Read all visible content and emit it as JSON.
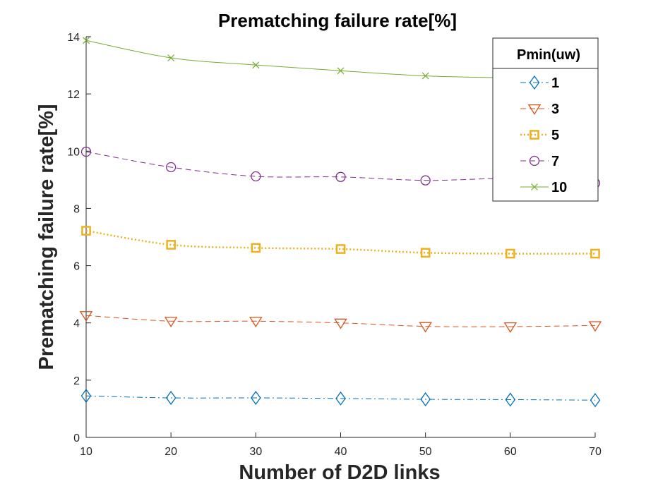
{
  "chart_data": {
    "type": "line",
    "title": "Prematching failure rate[%]",
    "xlabel": "Number of D2D links",
    "ylabel": "Prematching failure rate[%]",
    "xlim": [
      10,
      70
    ],
    "ylim": [
      0,
      14
    ],
    "xticks": [
      "10",
      "20",
      "30",
      "40",
      "50",
      "60",
      "70"
    ],
    "yticks": [
      "0",
      "2",
      "4",
      "6",
      "8",
      "10",
      "12",
      "14"
    ],
    "x": [
      10,
      20,
      30,
      40,
      50,
      60,
      70
    ],
    "grid": false,
    "legend": {
      "title": "Pmin(uw)",
      "placement": "top-right"
    },
    "series": [
      {
        "name": "1",
        "color": "#0072BD",
        "marker": "diamond",
        "line": "dashdot",
        "values": [
          1.45,
          1.38,
          1.38,
          1.36,
          1.33,
          1.32,
          1.3
        ]
      },
      {
        "name": "3",
        "color": "#D95319",
        "marker": "triangle-down",
        "line": "dashed",
        "values": [
          4.26,
          4.06,
          4.06,
          4.0,
          3.88,
          3.87,
          3.91
        ]
      },
      {
        "name": "5",
        "color": "#EDB120",
        "marker": "square",
        "line": "dotted",
        "values": [
          7.22,
          6.73,
          6.62,
          6.58,
          6.45,
          6.42,
          6.42
        ]
      },
      {
        "name": "7",
        "color": "#7E2F8E",
        "marker": "circle",
        "line": "dashed",
        "values": [
          9.98,
          9.44,
          9.12,
          9.1,
          8.98,
          9.04,
          8.88
        ]
      },
      {
        "name": "10",
        "color": "#77AC30",
        "marker": "x",
        "line": "solid",
        "values": [
          13.87,
          13.26,
          13.01,
          12.81,
          12.63,
          12.56,
          12.5
        ]
      }
    ]
  }
}
